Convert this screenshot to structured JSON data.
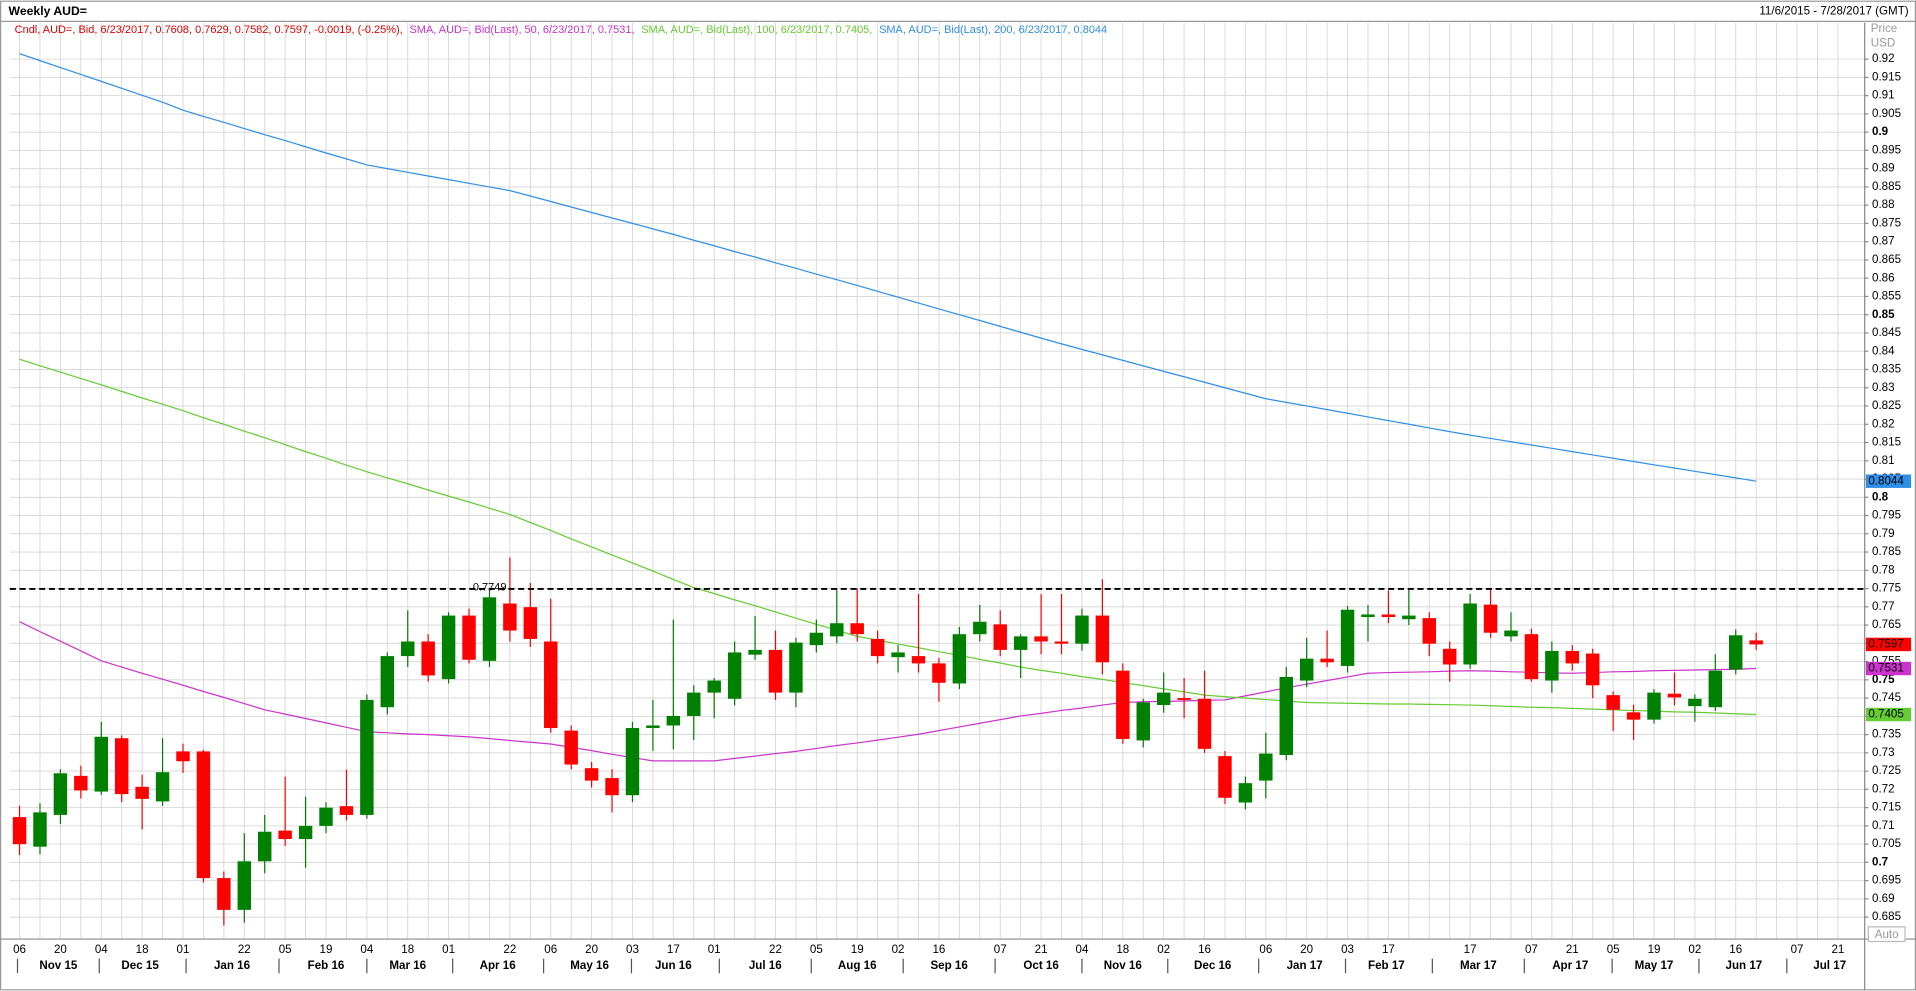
{
  "chart_data": {
    "type": "candlestick",
    "title": "Weekly AUD=",
    "date_range": "11/6/2015 - 7/28/2017 (GMT)",
    "candle_label": "Cndl, AUD=, Bid, 6/23/2017, 0.7608, 0.7629, 0.7582, 0.7597, -0.0019, (-0.25%),",
    "candle_label_color": "#e00000",
    "up_color": "#008000",
    "down_color": "#ff0000",
    "axis_title": "Price",
    "axis_unit": "USD",
    "axis_mode": "Auto",
    "grid": true,
    "hline": {
      "value": 0.7749
    },
    "ylim": [
      0.679,
      0.93
    ],
    "yticks": [
      0.685,
      0.69,
      0.695,
      0.7,
      0.705,
      0.71,
      0.715,
      0.72,
      0.725,
      0.73,
      0.735,
      0.74,
      0.745,
      0.75,
      0.755,
      0.76,
      0.765,
      0.77,
      0.775,
      0.78,
      0.785,
      0.79,
      0.795,
      0.8,
      0.805,
      0.81,
      0.815,
      0.82,
      0.825,
      0.83,
      0.835,
      0.84,
      0.845,
      0.85,
      0.855,
      0.86,
      0.865,
      0.87,
      0.875,
      0.88,
      0.885,
      0.89,
      0.895,
      0.9,
      0.905,
      0.91,
      0.915,
      0.92
    ],
    "categories": [
      "06",
      null,
      "20",
      null,
      "04",
      null,
      "18",
      null,
      "01",
      null,
      null,
      "22",
      null,
      "05",
      null,
      "19",
      null,
      "04",
      null,
      "18",
      null,
      "01",
      null,
      null,
      "22",
      null,
      "06",
      null,
      "20",
      null,
      "03",
      null,
      "17",
      null,
      "01",
      null,
      null,
      "22",
      null,
      "05",
      null,
      "19",
      null,
      "02",
      null,
      "16",
      null,
      null,
      "07",
      null,
      "21",
      null,
      "04",
      null,
      "18",
      null,
      "02",
      null,
      "16",
      null,
      null,
      "06",
      null,
      "20",
      null,
      "03",
      null,
      "17",
      null,
      null,
      null,
      "17",
      null,
      null,
      "07",
      null,
      "21",
      null,
      "05",
      null,
      "19",
      null,
      "02",
      null,
      "16",
      null,
      null,
      "07",
      null,
      "21"
    ],
    "months": [
      "Nov 15",
      "Dec 15",
      "Jan 16",
      "Feb 16",
      "Mar 16",
      "Apr 16",
      "May 16",
      "Jun 16",
      "Jul 16",
      "Aug 16",
      "Sep 16",
      "Oct 16",
      "Nov 16",
      "Dec 16",
      "Jan 17",
      "Feb 17",
      "Mar 17",
      "Apr 17",
      "May 17",
      "Jun 17",
      "Jul 17"
    ],
    "open": [
      0.7124,
      0.7043,
      0.713,
      0.7237,
      0.7194,
      0.734,
      0.7207,
      0.7167,
      0.7304,
      0.7304,
      0.6957,
      0.687,
      0.7003,
      0.7087,
      0.7064,
      0.71,
      0.7154,
      0.713,
      0.7425,
      0.7565,
      0.7605,
      0.7502,
      0.7676,
      0.7552,
      0.7709,
      0.7699,
      0.7605,
      0.7361,
      0.7258,
      0.7231,
      0.7184,
      0.7368,
      0.7375,
      0.7401,
      0.7465,
      0.7448,
      0.7569,
      0.7582,
      0.7465,
      0.7595,
      0.7619,
      0.7655,
      0.7612,
      0.7562,
      0.7565,
      0.7545,
      0.749,
      0.7625,
      0.7652,
      0.7582,
      0.7619,
      0.7605,
      0.7599,
      0.7676,
      0.7525,
      0.7334,
      0.7431,
      0.745,
      0.7448,
      0.7291,
      0.7164,
      0.7224,
      0.7294,
      0.7498,
      0.7558,
      0.7538,
      0.7672,
      0.7679,
      0.7666,
      0.7669,
      0.7585,
      0.7542,
      0.7706,
      0.7619,
      0.7625,
      0.7498,
      0.7579,
      0.7572,
      0.7458,
      0.7411,
      0.7391,
      0.7462,
      0.7428,
      0.7425,
      0.7528,
      0.7608,
      null,
      null,
      null,
      null
    ],
    "high": [
      0.7155,
      0.7162,
      0.7255,
      0.7265,
      0.7385,
      0.7348,
      0.724,
      0.734,
      0.7325,
      0.7308,
      0.6975,
      0.708,
      0.713,
      0.7235,
      0.718,
      0.7165,
      0.7254,
      0.746,
      0.7575,
      0.769,
      0.7625,
      0.7685,
      0.7695,
      0.7749,
      0.7835,
      0.7765,
      0.7722,
      0.7375,
      0.7275,
      0.7255,
      0.7385,
      0.7445,
      0.7665,
      0.7485,
      0.7505,
      0.7605,
      0.7675,
      0.7635,
      0.7615,
      0.7665,
      0.775,
      0.775,
      0.7635,
      0.7595,
      0.7735,
      0.756,
      0.7645,
      0.7705,
      0.769,
      0.7625,
      0.7735,
      0.7735,
      0.7695,
      0.7775,
      0.7545,
      0.7448,
      0.752,
      0.7505,
      0.7525,
      0.7305,
      0.7235,
      0.7355,
      0.7535,
      0.7615,
      0.7635,
      0.7702,
      0.7705,
      0.7745,
      0.7749,
      0.7685,
      0.7605,
      0.7735,
      0.7749,
      0.7685,
      0.764,
      0.7605,
      0.7595,
      0.7585,
      0.7468,
      0.7432,
      0.7475,
      0.752,
      0.746,
      0.757,
      0.7638,
      0.7629,
      null,
      null,
      null,
      null
    ],
    "low": [
      0.702,
      0.7022,
      0.7105,
      0.7175,
      0.7185,
      0.7165,
      0.709,
      0.7155,
      0.7245,
      0.6945,
      0.6827,
      0.6835,
      0.697,
      0.7045,
      0.6985,
      0.708,
      0.7115,
      0.712,
      0.7405,
      0.7535,
      0.7495,
      0.749,
      0.7545,
      0.7535,
      0.7605,
      0.759,
      0.7355,
      0.7255,
      0.7205,
      0.7137,
      0.7165,
      0.7305,
      0.731,
      0.7335,
      0.7395,
      0.743,
      0.7555,
      0.7445,
      0.7425,
      0.7575,
      0.76,
      0.7605,
      0.7545,
      0.752,
      0.752,
      0.744,
      0.7475,
      0.7605,
      0.7565,
      0.7505,
      0.757,
      0.757,
      0.758,
      0.7515,
      0.7325,
      0.7315,
      0.741,
      0.7395,
      0.73,
      0.716,
      0.7145,
      0.7175,
      0.728,
      0.748,
      0.7535,
      0.752,
      0.7605,
      0.7655,
      0.765,
      0.7565,
      0.7495,
      0.753,
      0.7615,
      0.7605,
      0.7495,
      0.7465,
      0.7525,
      0.745,
      0.736,
      0.7335,
      0.738,
      0.743,
      0.7385,
      0.7415,
      0.7515,
      0.7582,
      null,
      null,
      null,
      null
    ],
    "close": [
      0.705,
      0.7137,
      0.7244,
      0.7197,
      0.7344,
      0.7187,
      0.7174,
      0.7247,
      0.7277,
      0.6957,
      0.687,
      0.7003,
      0.7084,
      0.7064,
      0.71,
      0.715,
      0.713,
      0.7445,
      0.7565,
      0.7605,
      0.7512,
      0.7676,
      0.7555,
      0.7726,
      0.7635,
      0.7612,
      0.7368,
      0.7268,
      0.7224,
      0.7184,
      0.7368,
      0.7375,
      0.7401,
      0.7465,
      0.7498,
      0.7575,
      0.7582,
      0.7465,
      0.7602,
      0.7629,
      0.7655,
      0.7625,
      0.7565,
      0.7575,
      0.7545,
      0.7492,
      0.7625,
      0.7659,
      0.7582,
      0.7619,
      0.7605,
      0.7599,
      0.7676,
      0.7548,
      0.7338,
      0.7438,
      0.7465,
      0.7445,
      0.7311,
      0.7177,
      0.7217,
      0.7298,
      0.7508,
      0.7558,
      0.7548,
      0.7692,
      0.7679,
      0.7672,
      0.7676,
      0.7599,
      0.7542,
      0.7709,
      0.7629,
      0.7635,
      0.7502,
      0.7579,
      0.7545,
      0.7485,
      0.7418,
      0.7391,
      0.7465,
      0.7452,
      0.7448,
      0.7525,
      0.7622,
      0.7597,
      null,
      null,
      null,
      null
    ],
    "series": [
      {
        "name": "SMA, AUD=, Bid(Last), 50, 6/23/2017, 0.7531,",
        "color": "#cc33cc",
        "values": [
          0.7659,
          0.7632,
          0.7606,
          0.7579,
          0.7552,
          0.7535,
          0.7518,
          0.7502,
          0.7485,
          0.7468,
          0.7452,
          0.7435,
          0.7418,
          0.7406,
          0.7394,
          0.7382,
          0.737,
          0.7358,
          0.7355,
          0.7352,
          0.735,
          0.7347,
          0.7344,
          0.7339,
          0.7334,
          0.7329,
          0.7324,
          0.7315,
          0.7306,
          0.7296,
          0.7287,
          0.7278,
          0.7278,
          0.7278,
          0.7278,
          0.7285,
          0.7291,
          0.7298,
          0.7304,
          0.7312,
          0.732,
          0.7327,
          0.7335,
          0.7343,
          0.7351,
          0.7361,
          0.7371,
          0.7381,
          0.7391,
          0.7401,
          0.7408,
          0.7416,
          0.7423,
          0.7431,
          0.7438,
          0.744,
          0.7441,
          0.7442,
          0.7444,
          0.7445,
          0.7456,
          0.7467,
          0.7478,
          0.7488,
          0.7498,
          0.7508,
          0.7518,
          0.752,
          0.7521,
          0.7522,
          0.7524,
          0.7525,
          0.7524,
          0.7522,
          0.7521,
          0.7519,
          0.7518,
          0.752,
          0.7522,
          0.7523,
          0.7525,
          0.7526,
          0.7527,
          0.7528,
          0.7529,
          0.7531,
          null,
          null,
          null,
          null
        ]
      },
      {
        "name": "SMA, AUD=, Bid(Last), 100, 6/23/2017, 0.7405,",
        "color": "#66cc33",
        "values": [
          0.8378,
          0.836,
          0.8343,
          0.8325,
          0.8308,
          0.829,
          0.8272,
          0.8255,
          0.8237,
          0.8218,
          0.82,
          0.8181,
          0.8163,
          0.8144,
          0.8125,
          0.8107,
          0.8088,
          0.807,
          0.8053,
          0.8037,
          0.802,
          0.8003,
          0.7987,
          0.797,
          0.7953,
          0.7931,
          0.7909,
          0.7886,
          0.7864,
          0.7842,
          0.782,
          0.7798,
          0.7775,
          0.7753,
          0.7736,
          0.7719,
          0.7703,
          0.7686,
          0.7669,
          0.7652,
          0.7636,
          0.7619,
          0.7609,
          0.7598,
          0.7588,
          0.7577,
          0.7567,
          0.7556,
          0.7546,
          0.7535,
          0.7526,
          0.7518,
          0.7509,
          0.7501,
          0.7492,
          0.7484,
          0.7475,
          0.7467,
          0.7458,
          0.7454,
          0.745,
          0.7446,
          0.7442,
          0.7438,
          0.7437,
          0.7436,
          0.7435,
          0.7434,
          0.7434,
          0.7433,
          0.7432,
          0.7431,
          0.7429,
          0.7427,
          0.7425,
          0.7424,
          0.7422,
          0.742,
          0.7418,
          0.7416,
          0.7414,
          0.7412,
          0.7411,
          0.7409,
          0.7407,
          0.7405,
          null,
          null,
          null,
          null
        ]
      },
      {
        "name": "SMA, AUD=, Bid(Last), 200, 6/23/2017, 0.8044",
        "color": "#2f8fe6",
        "values": [
          0.9215,
          0.9196,
          0.9177,
          0.9158,
          0.9139,
          0.912,
          0.9101,
          0.9082,
          0.906,
          0.9043,
          0.9027,
          0.901,
          0.8993,
          0.8977,
          0.896,
          0.8943,
          0.8927,
          0.891,
          0.89,
          0.889,
          0.888,
          0.887,
          0.886,
          0.885,
          0.884,
          0.8825,
          0.881,
          0.8795,
          0.878,
          0.8765,
          0.875,
          0.8735,
          0.872,
          0.8704,
          0.8689,
          0.8673,
          0.8658,
          0.8642,
          0.8627,
          0.8611,
          0.8596,
          0.858,
          0.8564,
          0.8548,
          0.8532,
          0.8516,
          0.85,
          0.8484,
          0.8468,
          0.8452,
          0.8436,
          0.842,
          0.8405,
          0.839,
          0.8375,
          0.836,
          0.8345,
          0.833,
          0.8315,
          0.83,
          0.8285,
          0.827,
          0.826,
          0.825,
          0.824,
          0.823,
          0.822,
          0.821,
          0.82,
          0.819,
          0.818,
          0.817,
          0.8161,
          0.8152,
          0.8143,
          0.8134,
          0.8125,
          0.8116,
          0.8107,
          0.8098,
          0.8089,
          0.808,
          0.8071,
          0.8062,
          0.8053,
          0.8044,
          null,
          null,
          null,
          null
        ]
      }
    ]
  }
}
